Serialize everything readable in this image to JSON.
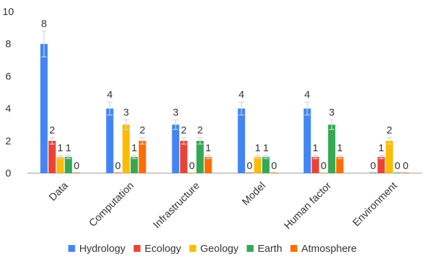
{
  "chart_data": {
    "type": "bar",
    "categories": [
      "Data",
      "Computation",
      "Infrastructure",
      "Model",
      "Human factor",
      "Environment"
    ],
    "series": [
      {
        "name": "Hydrology",
        "color": "#4285F4",
        "values": [
          8,
          4,
          3,
          4,
          4,
          0
        ],
        "errors": [
          0.8,
          0.4,
          0.3,
          0.4,
          0.4,
          0
        ]
      },
      {
        "name": "Ecology",
        "color": "#EA4335",
        "values": [
          2,
          0,
          2,
          0,
          1,
          1
        ],
        "errors": [
          0.2,
          0,
          0.2,
          0,
          0.1,
          0.1
        ]
      },
      {
        "name": "Geology",
        "color": "#FBBC04",
        "values": [
          1,
          3,
          0,
          1,
          0,
          2
        ],
        "errors": [
          0.1,
          0.3,
          0,
          0.1,
          0,
          0.2
        ]
      },
      {
        "name": "Earth",
        "color": "#34A853",
        "values": [
          1,
          1,
          2,
          1,
          3,
          0
        ],
        "errors": [
          0.1,
          0.1,
          0.2,
          0.1,
          0.3,
          0
        ]
      },
      {
        "name": "Atmosphere",
        "color": "#FF6D01",
        "values": [
          0,
          2,
          1,
          0,
          1,
          0
        ],
        "errors": [
          0,
          0.2,
          0.1,
          0,
          0.1,
          0
        ]
      }
    ],
    "ylim": [
      0,
      10
    ],
    "yticks": [
      0,
      2,
      4,
      6,
      8,
      10
    ],
    "grid": false,
    "legend_position": "bottom",
    "data_labels": true,
    "x_label_rotation": "-45deg"
  }
}
